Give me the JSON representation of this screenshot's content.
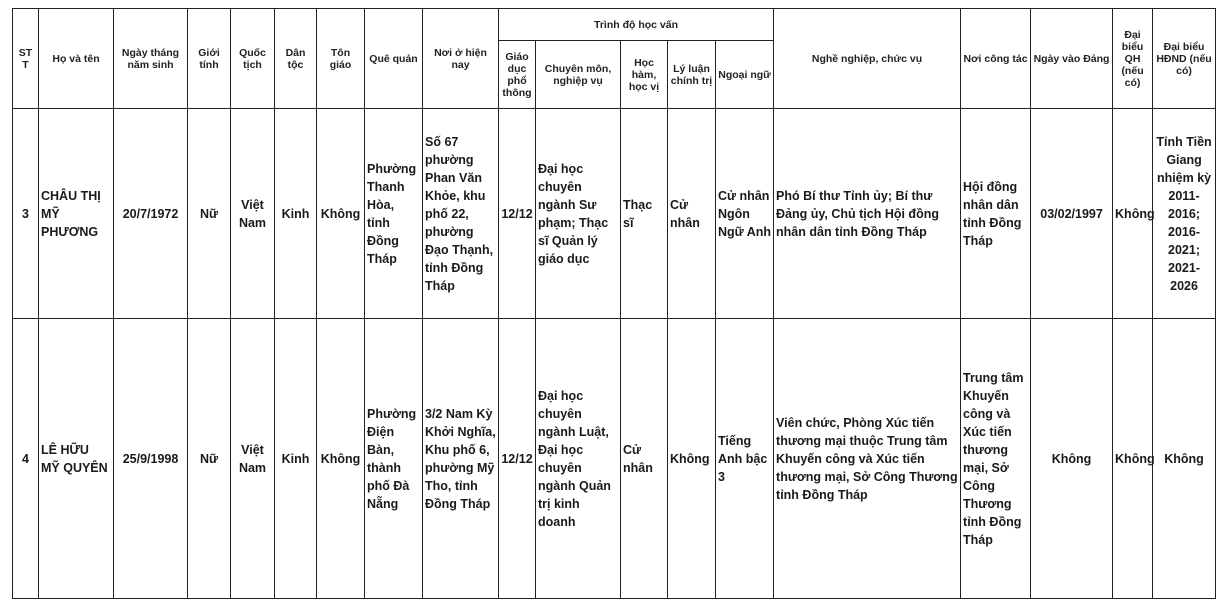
{
  "headers": {
    "stt": "ST T",
    "name": "Họ và tên",
    "dob": "Ngày tháng năm sinh",
    "gender": "Giới tính",
    "nationality": "Quốc tịch",
    "ethnicity": "Dân tộc",
    "religion": "Tôn giáo",
    "hometown": "Quê quán",
    "residence": "Nơi ở hiện nay",
    "education_group": "Trình độ học vấn",
    "general_edu": "Giáo dục phổ thông",
    "specialty": "Chuyên môn, nghiệp vụ",
    "degree": "Học hàm, học vị",
    "politics": "Lý luận chính trị",
    "language": "Ngoại ngữ",
    "occupation": "Nghề nghiệp, chức vụ",
    "workplace": "Nơi công tác",
    "party_date": "Ngày vào Đảng",
    "na_delegate": "Đại biểu QH (nếu có)",
    "council_delegate": "Đại biểu HĐND (nếu có)"
  },
  "rows": [
    {
      "stt": "3",
      "name": "CHÂU THỊ MỸ PHƯƠNG",
      "dob": "20/7/1972",
      "gender": "Nữ",
      "nationality": "Việt Nam",
      "ethnicity": "Kinh",
      "religion": "Không",
      "hometown": "Phường Thanh Hòa, tỉnh Đồng Tháp",
      "residence": "Số 67 phường Phan Văn Khỏe, khu phố 22, phường Đạo Thạnh, tỉnh Đồng Tháp",
      "general_edu": "12/12",
      "specialty": "Đại học chuyên ngành Sư phạm; Thạc sĩ Quản lý giáo dục",
      "degree": "Thạc sĩ",
      "politics": "Cử nhân",
      "language": "Cử nhân Ngôn Ngữ Anh",
      "occupation": "Phó Bí thư Tỉnh ủy; Bí thư Đảng ủy, Chủ tịch Hội đồng nhân dân tỉnh Đồng Tháp",
      "workplace": "Hội đồng nhân dân tỉnh Đồng Tháp",
      "party_date": "03/02/1997",
      "na_delegate": "Không",
      "council_delegate": "Tỉnh Tiền Giang nhiệm kỳ 2011-2016; 2016-2021; 2021-2026"
    },
    {
      "stt": "4",
      "name": "LÊ HỮU MỸ QUYÊN",
      "dob": "25/9/1998",
      "gender": "Nữ",
      "nationality": "Việt Nam",
      "ethnicity": "Kinh",
      "religion": "Không",
      "hometown": "Phường Điện Bàn, thành phố Đà Nẵng",
      "residence": "3/2 Nam Kỳ Khởi Nghĩa, Khu phố 6, phường Mỹ Tho, tỉnh Đồng Tháp",
      "general_edu": "12/12",
      "specialty": "Đại học chuyên ngành Luật, Đại học chuyên ngành Quản trị kinh doanh",
      "degree": "Cử nhân",
      "politics": "Không",
      "language": "Tiếng Anh bậc 3",
      "occupation": "Viên chức, Phòng Xúc tiến thương mại thuộc Trung tâm Khuyến công và Xúc tiến thương mại, Sở Công Thương tỉnh Đồng Tháp",
      "workplace": "Trung tâm Khuyến công và Xúc tiến thương mại, Sở Công Thương tỉnh Đồng Tháp",
      "party_date": "Không",
      "na_delegate": "Không",
      "council_delegate": "Không"
    }
  ]
}
